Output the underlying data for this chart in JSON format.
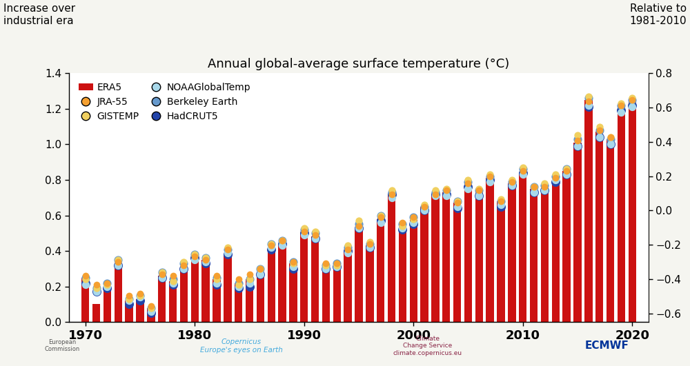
{
  "title": "Annual global-average surface temperature (°C)",
  "years": [
    1970,
    1971,
    1972,
    1973,
    1974,
    1975,
    1976,
    1977,
    1978,
    1979,
    1980,
    1981,
    1982,
    1983,
    1984,
    1985,
    1986,
    1987,
    1988,
    1989,
    1990,
    1991,
    1992,
    1993,
    1994,
    1995,
    1996,
    1997,
    1998,
    1999,
    2000,
    2001,
    2002,
    2003,
    2004,
    2005,
    2006,
    2007,
    2008,
    2009,
    2010,
    2011,
    2012,
    2013,
    2014,
    2015,
    2016,
    2017,
    2018,
    2019,
    2020
  ],
  "era5": [
    0.25,
    0.1,
    0.18,
    0.31,
    0.12,
    0.13,
    0.08,
    0.26,
    0.23,
    0.3,
    0.36,
    0.35,
    0.24,
    0.38,
    0.22,
    0.24,
    0.28,
    0.42,
    0.44,
    0.33,
    0.5,
    0.48,
    0.32,
    0.32,
    0.4,
    0.53,
    0.43,
    0.58,
    0.72,
    0.55,
    0.58,
    0.65,
    0.72,
    0.73,
    0.67,
    0.77,
    0.73,
    0.81,
    0.68,
    0.78,
    0.84,
    0.75,
    0.76,
    0.81,
    0.85,
    1.01,
    1.25,
    1.07,
    1.03,
    1.21,
    1.24
  ],
  "jra55": [
    0.26,
    0.21,
    0.22,
    0.34,
    0.15,
    0.16,
    0.09,
    0.27,
    0.26,
    0.32,
    0.37,
    0.35,
    0.26,
    0.41,
    0.24,
    0.27,
    0.3,
    0.43,
    0.46,
    0.34,
    0.51,
    0.49,
    0.33,
    0.33,
    0.41,
    0.54,
    0.44,
    0.59,
    0.72,
    0.56,
    0.59,
    0.65,
    0.72,
    0.74,
    0.67,
    0.78,
    0.74,
    0.82,
    0.68,
    0.79,
    0.85,
    0.76,
    0.76,
    0.81,
    0.85,
    1.02,
    1.24,
    1.08,
    1.04,
    1.22,
    1.25
  ],
  "gistemp": [
    0.24,
    0.19,
    0.21,
    0.35,
    0.13,
    0.15,
    0.08,
    0.28,
    0.23,
    0.34,
    0.38,
    0.36,
    0.24,
    0.42,
    0.21,
    0.24,
    0.3,
    0.44,
    0.46,
    0.33,
    0.53,
    0.51,
    0.32,
    0.32,
    0.43,
    0.57,
    0.45,
    0.6,
    0.74,
    0.54,
    0.58,
    0.66,
    0.74,
    0.75,
    0.68,
    0.8,
    0.75,
    0.83,
    0.69,
    0.8,
    0.87,
    0.76,
    0.78,
    0.83,
    0.86,
    1.05,
    1.27,
    1.1,
    1.04,
    1.23,
    1.26
  ],
  "noaa": [
    0.21,
    0.17,
    0.2,
    0.32,
    0.12,
    0.14,
    0.06,
    0.25,
    0.22,
    0.3,
    0.35,
    0.34,
    0.22,
    0.39,
    0.2,
    0.22,
    0.27,
    0.42,
    0.43,
    0.31,
    0.49,
    0.47,
    0.3,
    0.31,
    0.39,
    0.53,
    0.42,
    0.56,
    0.7,
    0.53,
    0.56,
    0.63,
    0.71,
    0.71,
    0.65,
    0.75,
    0.71,
    0.79,
    0.66,
    0.77,
    0.83,
    0.73,
    0.74,
    0.8,
    0.83,
    0.99,
    1.22,
    1.04,
    1.0,
    1.18,
    1.21
  ],
  "berkeley": [
    0.25,
    0.19,
    0.22,
    0.35,
    0.13,
    0.15,
    0.08,
    0.28,
    0.24,
    0.33,
    0.38,
    0.36,
    0.25,
    0.41,
    0.22,
    0.24,
    0.3,
    0.44,
    0.46,
    0.34,
    0.52,
    0.5,
    0.32,
    0.33,
    0.42,
    0.55,
    0.44,
    0.6,
    0.73,
    0.55,
    0.59,
    0.65,
    0.73,
    0.74,
    0.68,
    0.79,
    0.74,
    0.82,
    0.68,
    0.79,
    0.86,
    0.76,
    0.77,
    0.82,
    0.86,
    1.03,
    1.26,
    1.08,
    1.03,
    1.22,
    1.25
  ],
  "hadcrut5": [
    0.22,
    0.17,
    0.19,
    0.32,
    0.1,
    0.12,
    0.05,
    0.25,
    0.21,
    0.3,
    0.36,
    0.33,
    0.21,
    0.38,
    0.19,
    0.2,
    0.27,
    0.41,
    0.44,
    0.3,
    0.5,
    0.47,
    0.3,
    0.31,
    0.4,
    0.53,
    0.42,
    0.57,
    0.72,
    0.52,
    0.55,
    0.63,
    0.72,
    0.72,
    0.64,
    0.76,
    0.71,
    0.8,
    0.65,
    0.77,
    0.84,
    0.73,
    0.74,
    0.79,
    0.83,
    0.99,
    1.21,
    1.04,
    1.0,
    1.19,
    1.22
  ],
  "era5_color": "#cc1111",
  "jra55_color": "#f5a030",
  "gistemp_color": "#f0d060",
  "noaa_color": "#a8d8ea",
  "berkeley_color": "#6699cc",
  "hadcrut5_color": "#2244aa",
  "ylim_left": [
    0.0,
    1.4
  ],
  "ylim_right": [
    -0.65,
    0.75
  ],
  "xticks": [
    1970,
    1980,
    1990,
    2000,
    2010,
    2020
  ],
  "yticks_left": [
    0.0,
    0.2,
    0.4,
    0.6,
    0.8,
    1.0,
    1.2,
    1.4
  ],
  "yticks_right": [
    -0.6,
    -0.4,
    -0.2,
    0.0,
    0.2,
    0.4,
    0.6,
    0.8
  ],
  "bg_color": "#f5f5f0"
}
